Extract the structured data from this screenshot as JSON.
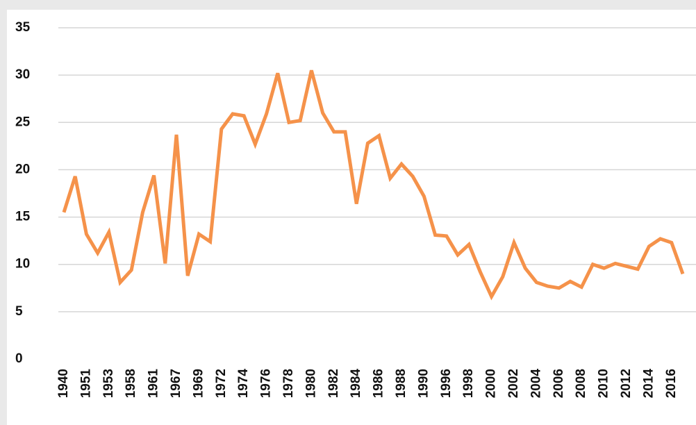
{
  "chart_data": {
    "type": "line",
    "categories": [
      "1940",
      null,
      "1951",
      null,
      "1953",
      null,
      "1958",
      null,
      "1961",
      null,
      "1967",
      null,
      "1969",
      null,
      "1972",
      null,
      "1974",
      null,
      "1976",
      null,
      "1978",
      null,
      "1980",
      null,
      "1982",
      null,
      "1984",
      null,
      "1986",
      null,
      "1988",
      null,
      "1990",
      null,
      "1996",
      null,
      "1998",
      null,
      "2000",
      null,
      "2002",
      null,
      "2004",
      null,
      "2006",
      null,
      "2008",
      null,
      "2010",
      null,
      "2012",
      null,
      "2014",
      null,
      "2016",
      null
    ],
    "series": [
      {
        "name": "value",
        "color": "#f5924a",
        "values": [
          15.5,
          19.3,
          13.2,
          11.2,
          13.4,
          8.1,
          9.4,
          15.5,
          19.4,
          10.1,
          23.7,
          8.8,
          13.2,
          12.4,
          24.3,
          25.9,
          25.7,
          22.7,
          25.9,
          30.2,
          25.0,
          25.2,
          30.5,
          26.0,
          24.0,
          24.0,
          16.4,
          22.8,
          23.6,
          19.1,
          20.6,
          19.3,
          17.2,
          13.1,
          13.0,
          11.0,
          12.1,
          9.2,
          6.6,
          8.7,
          12.3,
          9.6,
          8.1,
          7.7,
          7.5,
          8.2,
          7.6,
          10.0,
          9.6,
          10.1,
          9.8,
          9.5,
          11.9,
          12.7,
          12.3,
          9.0
        ]
      }
    ],
    "ylim": [
      0,
      35
    ],
    "yticks": [
      0,
      5,
      10,
      15,
      20,
      25,
      30,
      35
    ],
    "grid": true
  }
}
